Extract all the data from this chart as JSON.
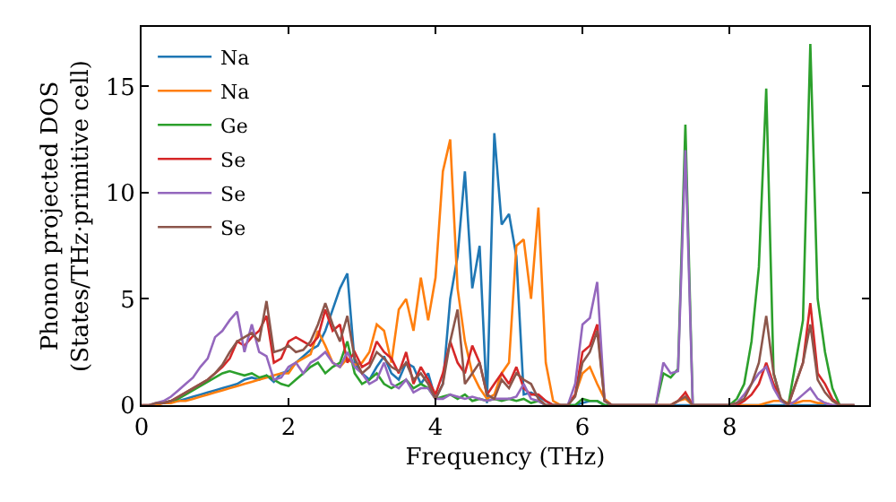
{
  "chart_data": {
    "type": "line",
    "xlabel": "Frequency (THz)",
    "ylabel": "Phonon projected DOS\n(States/THz·primitive cell)",
    "x": [
      0,
      0.1,
      0.2,
      0.3,
      0.4,
      0.5,
      0.6,
      0.7,
      0.8,
      0.9,
      1.0,
      1.1,
      1.2,
      1.3,
      1.4,
      1.5,
      1.6,
      1.7,
      1.8,
      1.9,
      2.0,
      2.1,
      2.2,
      2.3,
      2.4,
      2.5,
      2.6,
      2.7,
      2.8,
      2.9,
      3.0,
      3.1,
      3.2,
      3.3,
      3.4,
      3.5,
      3.6,
      3.7,
      3.8,
      3.9,
      4.0,
      4.1,
      4.2,
      4.3,
      4.4,
      4.5,
      4.6,
      4.7,
      4.8,
      4.9,
      5.0,
      5.1,
      5.2,
      5.3,
      5.4,
      5.5,
      5.6,
      5.7,
      5.8,
      5.9,
      6.0,
      6.1,
      6.2,
      6.3,
      6.4,
      6.5,
      6.6,
      6.7,
      6.8,
      6.9,
      7.0,
      7.1,
      7.2,
      7.3,
      7.4,
      7.5,
      7.6,
      7.7,
      7.8,
      7.9,
      8.0,
      8.1,
      8.2,
      8.3,
      8.4,
      8.5,
      8.6,
      8.7,
      8.8,
      8.9,
      9.0,
      9.1,
      9.2,
      9.3,
      9.4,
      9.5,
      9.6,
      9.7
    ],
    "series": [
      {
        "name": "Na",
        "color": "#1f77b4",
        "values": [
          null,
          null,
          null,
          0.1,
          0.2,
          0.2,
          0.3,
          0.4,
          0.5,
          0.6,
          0.7,
          0.8,
          0.9,
          1.0,
          1.2,
          1.3,
          1.2,
          1.4,
          1.1,
          1.5,
          1.6,
          2.0,
          2.3,
          2.6,
          2.8,
          3.5,
          4.5,
          5.5,
          6.2,
          2.0,
          1.5,
          1.2,
          1.8,
          2.3,
          1.5,
          1.2,
          2.0,
          1.8,
          1.0,
          1.5,
          0.3,
          1.0,
          5.0,
          7.0,
          11.0,
          5.5,
          7.5,
          0.1,
          12.8,
          8.5,
          9.0,
          7.0,
          0.5,
          0.6,
          0.4,
          0.2,
          0,
          0,
          0,
          0,
          0.1,
          0.2,
          0.2,
          0,
          0,
          0,
          0,
          0,
          0,
          0,
          0,
          0,
          0,
          0,
          0,
          0,
          0,
          0,
          0,
          0,
          0,
          0,
          0,
          0,
          0,
          0,
          0,
          0,
          0,
          0,
          0,
          0,
          0,
          0,
          0,
          0,
          null,
          null
        ]
      },
      {
        "name": "Na",
        "color": "#ff7f0e",
        "values": [
          0,
          0,
          0,
          0.1,
          0.1,
          0.2,
          0.2,
          0.3,
          0.4,
          0.5,
          0.6,
          0.7,
          0.8,
          0.9,
          1.0,
          1.1,
          1.2,
          1.3,
          1.4,
          1.5,
          1.5,
          2.0,
          2.2,
          2.4,
          3.5,
          2.8,
          2.0,
          1.8,
          2.2,
          1.9,
          2.0,
          2.5,
          3.8,
          3.5,
          2.0,
          4.5,
          5.0,
          3.5,
          6.0,
          4.0,
          6.0,
          11.0,
          12.5,
          5.5,
          3.0,
          1.5,
          0.8,
          0.3,
          0.5,
          1.5,
          2.0,
          7.5,
          7.8,
          5.0,
          9.3,
          2.0,
          0.2,
          0,
          0,
          0.5,
          1.5,
          1.8,
          1.0,
          0.3,
          0,
          0,
          0,
          0,
          0,
          0,
          0,
          0,
          0,
          0.2,
          0.3,
          0,
          0,
          0,
          0,
          0,
          0,
          0,
          0,
          0,
          0,
          0.1,
          0.2,
          0.2,
          0.1,
          0.1,
          0.2,
          0.2,
          0.1,
          0.1,
          0,
          null,
          null,
          null
        ]
      },
      {
        "name": "Ge",
        "color": "#2ca02c",
        "values": [
          null,
          null,
          null,
          0.1,
          0.2,
          0.3,
          0.5,
          0.7,
          0.9,
          1.1,
          1.3,
          1.5,
          1.6,
          1.5,
          1.4,
          1.5,
          1.3,
          1.4,
          1.2,
          1.0,
          0.9,
          1.2,
          1.5,
          1.8,
          2.0,
          1.5,
          1.8,
          2.0,
          3.0,
          1.5,
          1.0,
          1.2,
          1.5,
          1.0,
          0.8,
          1.0,
          1.2,
          0.8,
          1.0,
          0.8,
          0.3,
          0.4,
          0.5,
          0.3,
          0.5,
          0.2,
          0.3,
          0.2,
          0.3,
          0.2,
          0.3,
          0.2,
          0.3,
          0.1,
          0.2,
          0,
          0,
          0,
          0,
          0,
          0.3,
          0.2,
          0.2,
          0,
          0,
          0,
          0,
          0,
          0,
          0,
          0,
          1.5,
          1.3,
          1.7,
          13.2,
          0,
          0,
          0,
          0,
          0,
          0,
          0.3,
          1.0,
          3.0,
          6.5,
          14.9,
          1.5,
          0.2,
          0,
          2.0,
          4.0,
          17.0,
          5.0,
          2.5,
          0.8,
          0,
          0,
          0
        ]
      },
      {
        "name": "Se",
        "color": "#d62728",
        "values": [
          null,
          null,
          null,
          0.1,
          0.2,
          0.4,
          0.6,
          0.8,
          1.0,
          1.2,
          1.5,
          1.8,
          2.2,
          3.0,
          2.8,
          3.2,
          3.5,
          4.2,
          2.0,
          2.2,
          3.0,
          3.2,
          3.0,
          2.8,
          3.2,
          4.5,
          3.5,
          3.8,
          2.0,
          2.5,
          1.8,
          2.0,
          3.0,
          2.5,
          2.2,
          1.5,
          2.5,
          1.0,
          1.8,
          1.2,
          0.5,
          1.5,
          3.0,
          2.0,
          1.5,
          2.8,
          2.0,
          0.5,
          1.0,
          1.5,
          1.0,
          1.8,
          0.8,
          0.5,
          0.5,
          0.2,
          0,
          0,
          0,
          0.5,
          2.5,
          2.8,
          3.8,
          0.2,
          0,
          0,
          0,
          0,
          0,
          0,
          0,
          0,
          0,
          0.2,
          0.6,
          0,
          0,
          0,
          0,
          0,
          0,
          0,
          0.2,
          0.5,
          1.0,
          2.0,
          1.0,
          0.3,
          0,
          1.0,
          2.0,
          4.8,
          1.5,
          1.0,
          0.3,
          0,
          0,
          0
        ]
      },
      {
        "name": "Se",
        "color": "#9467bd",
        "values": [
          0,
          0,
          0.1,
          0.2,
          0.4,
          0.7,
          1.0,
          1.3,
          1.8,
          2.2,
          3.2,
          3.5,
          4.0,
          4.4,
          2.5,
          3.8,
          2.5,
          2.3,
          1.2,
          1.3,
          1.8,
          2.0,
          1.5,
          2.0,
          2.2,
          2.5,
          2.0,
          1.8,
          2.5,
          1.8,
          1.5,
          1.0,
          1.2,
          2.0,
          1.0,
          0.8,
          1.2,
          0.6,
          0.8,
          0.8,
          0.3,
          0.3,
          0.5,
          0.4,
          0.3,
          0.4,
          0.3,
          0.2,
          0.3,
          0.3,
          0.3,
          0.4,
          1.0,
          0.3,
          0.2,
          0,
          0,
          0,
          0,
          1.0,
          3.8,
          4.1,
          5.8,
          0.2,
          0,
          0,
          0,
          0,
          0,
          0,
          0,
          2.0,
          1.5,
          1.6,
          12.0,
          0,
          0,
          0,
          0,
          0,
          0,
          0.1,
          0.5,
          1.0,
          1.5,
          1.8,
          0.8,
          0.2,
          0,
          0.2,
          0.5,
          0.8,
          0.3,
          0.1,
          0,
          0,
          0,
          0
        ]
      },
      {
        "name": "Se",
        "color": "#8c564b",
        "values": [
          0,
          0,
          0.1,
          0.1,
          0.2,
          0.4,
          0.6,
          0.8,
          1.0,
          1.2,
          1.5,
          1.9,
          2.5,
          3.0,
          3.2,
          3.4,
          3.0,
          4.9,
          2.5,
          2.6,
          2.8,
          2.5,
          2.6,
          3.0,
          3.8,
          4.8,
          3.8,
          3.0,
          4.2,
          2.2,
          1.5,
          1.8,
          2.5,
          2.2,
          1.8,
          1.6,
          2.0,
          1.2,
          1.5,
          1.0,
          0.3,
          1.0,
          3.0,
          4.5,
          1.0,
          1.5,
          2.0,
          0.5,
          0.3,
          1.2,
          0.8,
          1.5,
          1.2,
          1.0,
          0.3,
          0,
          0,
          0,
          0,
          0.4,
          2.0,
          2.5,
          3.5,
          0.2,
          0,
          0,
          0,
          0,
          0,
          0,
          0,
          0,
          0,
          0.2,
          0.4,
          0,
          0,
          0,
          0,
          0,
          0,
          0.1,
          0.3,
          1.0,
          2.0,
          4.2,
          1.5,
          0.3,
          0,
          1.0,
          2.0,
          3.8,
          1.2,
          0.6,
          0.2,
          0,
          0,
          0
        ]
      }
    ],
    "xlim": [
      0,
      9.9
    ],
    "ylim": [
      0,
      17.8
    ],
    "xticks": [
      0,
      2,
      4,
      6,
      8
    ],
    "yticks": [
      0,
      5,
      10,
      15
    ],
    "legend": "top left",
    "marker": "none",
    "line_style": "solid"
  }
}
